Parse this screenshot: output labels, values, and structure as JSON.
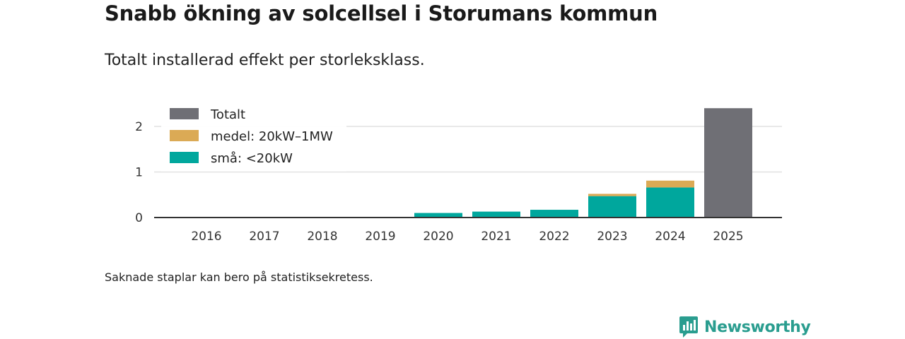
{
  "title": "Snabb ökning av solcellsel i Storumans kommun",
  "subtitle": "Totalt installerad effekt per storleksklass.",
  "footnote": "Saknade staplar kan bero på statistiksekretess.",
  "brand": {
    "name": "Newsworthy",
    "icon": "newsworthy-logo-icon",
    "color": "#2a9d8f"
  },
  "chart_data": {
    "type": "bar",
    "stacked": true,
    "title": "Snabb ökning av solcellsel i Storumans kommun",
    "subtitle": "Totalt installerad effekt per storleksklass.",
    "xlabel": "",
    "ylabel": "",
    "categories": [
      "2016",
      "2017",
      "2018",
      "2019",
      "2020",
      "2021",
      "2022",
      "2023",
      "2024",
      "2025"
    ],
    "ylim": [
      0,
      2.4
    ],
    "yticks": [
      0,
      1,
      2
    ],
    "ytick_labels": [
      "0",
      "1",
      "2"
    ],
    "grid": true,
    "legend_position": "top-left",
    "series": [
      {
        "name": "små: <20kW",
        "color": "#00a79d",
        "values": [
          0,
          0,
          0,
          0,
          0.1,
          0.13,
          0.17,
          0.47,
          0.66,
          0
        ]
      },
      {
        "name": "medel: 20kW–1MW",
        "color": "#dbaa55",
        "values": [
          0,
          0,
          0,
          0,
          0,
          0,
          0,
          0.05,
          0.15,
          0
        ]
      },
      {
        "name": "Totalt",
        "color": "#6f6f75",
        "values": [
          0,
          0,
          0,
          0,
          0,
          0,
          0,
          0,
          0,
          2.4
        ]
      }
    ],
    "legend_order": [
      "Totalt",
      "medel: 20kW–1MW",
      "små: <20kW"
    ]
  }
}
